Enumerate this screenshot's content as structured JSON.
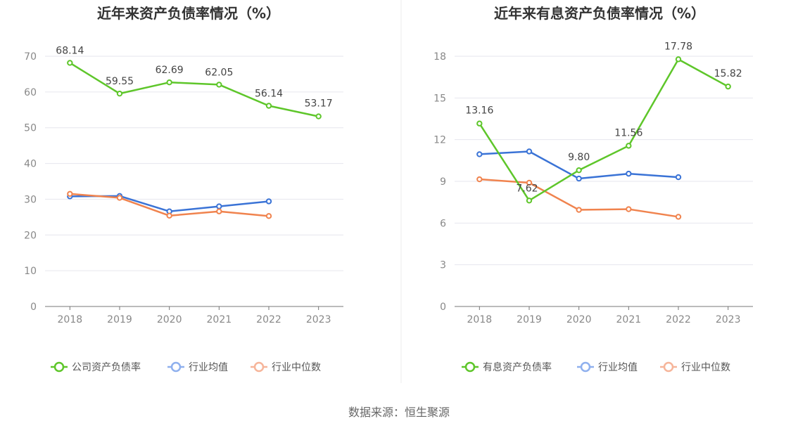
{
  "source": "数据来源：恒生聚源",
  "chart_data": [
    {
      "type": "line",
      "title": "近年来资产负债率情况（%）",
      "xlabel": "",
      "ylabel": "",
      "categories": [
        "2018",
        "2019",
        "2020",
        "2021",
        "2022",
        "2023"
      ],
      "ylim": [
        0,
        70
      ],
      "yticks": [
        0,
        10,
        20,
        30,
        40,
        50,
        60,
        70
      ],
      "grid": true,
      "legend_position": "bottom",
      "series": [
        {
          "name": "公司资产负债率",
          "color": "#5ec62a",
          "values": [
            68.14,
            59.55,
            62.69,
            62.05,
            56.14,
            53.17
          ],
          "labels": [
            "68.14",
            "59.55",
            "62.69",
            "62.05",
            "56.14",
            "53.17"
          ]
        },
        {
          "name": "行业均值",
          "color": "#3a73d6",
          "values": [
            30.8,
            30.9,
            26.6,
            28.0,
            29.4,
            null
          ]
        },
        {
          "name": "行业中位数",
          "color": "#f0834e",
          "values": [
            31.5,
            30.4,
            25.4,
            26.6,
            25.3,
            null
          ]
        }
      ]
    },
    {
      "type": "line",
      "title": "近年来有息资产负债率情况（%）",
      "xlabel": "",
      "ylabel": "",
      "categories": [
        "2018",
        "2019",
        "2020",
        "2021",
        "2022",
        "2023"
      ],
      "ylim": [
        0,
        18
      ],
      "yticks": [
        0,
        3,
        6,
        9,
        12,
        15,
        18
      ],
      "grid": true,
      "legend_position": "bottom",
      "series": [
        {
          "name": "有息资产负债率",
          "color": "#5ec62a",
          "values": [
            13.16,
            7.62,
            9.8,
            11.56,
            17.78,
            15.82
          ],
          "labels": [
            "13.16",
            "7.62",
            "9.80",
            "11.56",
            "17.78",
            "15.82"
          ]
        },
        {
          "name": "行业均值",
          "color": "#3a73d6",
          "values": [
            10.95,
            11.15,
            9.2,
            9.55,
            9.3,
            null
          ]
        },
        {
          "name": "行业中位数",
          "color": "#f0834e",
          "values": [
            9.15,
            8.9,
            6.95,
            7.0,
            6.45,
            null
          ]
        }
      ]
    }
  ]
}
